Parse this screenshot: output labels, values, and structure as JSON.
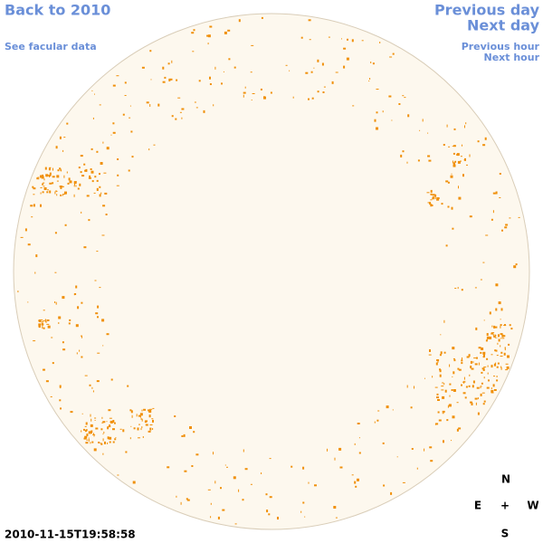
{
  "links": {
    "back": "Back to 2010",
    "facular": "See facular data",
    "previous_day": "Previous day",
    "next_day": "Next day",
    "previous_hour": "Previous hour",
    "next_hour": "Next hour"
  },
  "timestamp": "2010-11-15T19:58:58",
  "compass": {
    "north": "N",
    "east": "E",
    "center": "+",
    "west": "W",
    "south": "S"
  }
}
